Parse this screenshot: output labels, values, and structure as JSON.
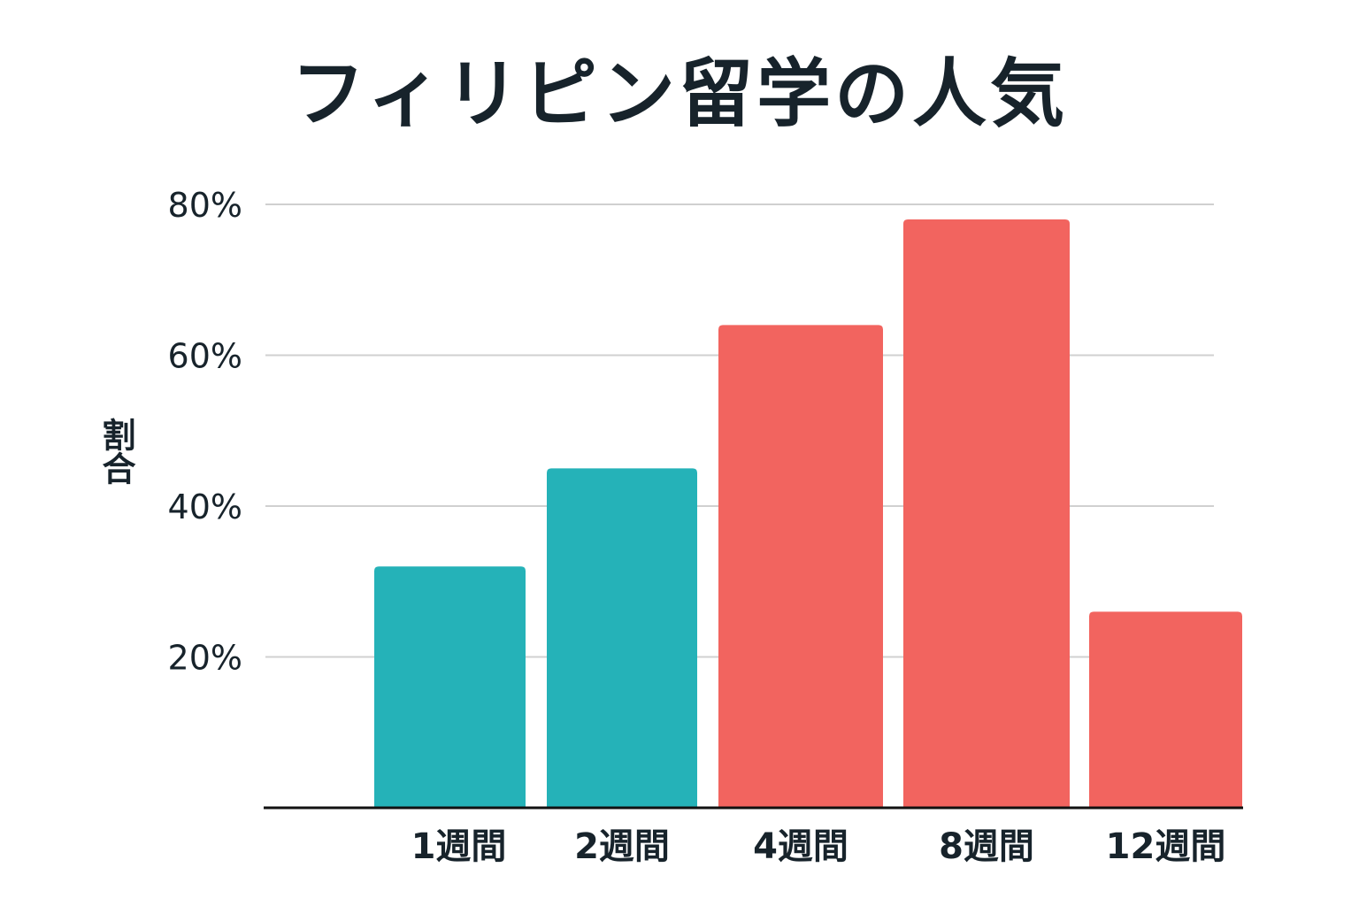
{
  "chart_data": {
    "type": "bar",
    "title": "フィリピン留学の人気",
    "ylabel": "割合",
    "xlabel": "",
    "categories": [
      "1週間",
      "2週間",
      "4週間",
      "8週間",
      "12週間"
    ],
    "values": [
      32,
      45,
      64,
      78,
      26
    ],
    "bar_colors": [
      "#25b2b8",
      "#25b2b8",
      "#f2645f",
      "#f2645f",
      "#f2645f"
    ],
    "yticks": [
      {
        "value": 20,
        "label": "20%"
      },
      {
        "value": 40,
        "label": "40%"
      },
      {
        "value": 60,
        "label": "60%"
      },
      {
        "value": 80,
        "label": "80%"
      }
    ],
    "ylim": [
      0,
      80
    ],
    "grid": true,
    "gridline_color": "#d0d0d0",
    "axis_color": "#111111"
  }
}
